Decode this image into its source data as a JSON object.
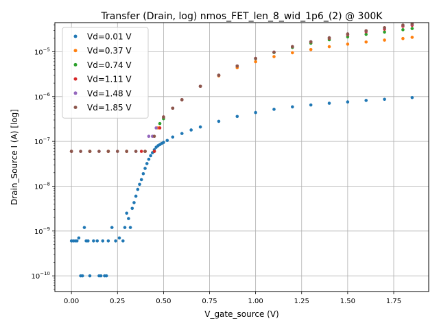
{
  "chart_data": {
    "type": "scatter",
    "title": "Transfer (Drain, log) nmos_FET_len_8_wid_1p6_(2) @ 300K",
    "xlabel": "V_gate_source (V)",
    "ylabel": "Drain_Source I (A) [log]",
    "xlim": [
      -0.09,
      1.94
    ],
    "ylim_log10": [
      -10.35,
      -4.35
    ],
    "y_scale": "log",
    "x_ticks": [
      "0.00",
      "0.25",
      "0.50",
      "0.75",
      "1.00",
      "1.25",
      "1.50",
      "1.75"
    ],
    "x_tick_values": [
      0,
      0.25,
      0.5,
      0.75,
      1.0,
      1.25,
      1.5,
      1.75
    ],
    "y_ticks": [
      "10^-10",
      "10^-9",
      "10^-8",
      "10^-7",
      "10^-6",
      "10^-5"
    ],
    "y_tick_exponents": [
      -10,
      -9,
      -8,
      -7,
      -6,
      -5
    ],
    "grid": true,
    "legend_position": "top-left",
    "series": [
      {
        "name": "Vd=0.01 V",
        "color": "#1f77b4",
        "x": [
          0.0,
          0.01,
          0.02,
          0.03,
          0.04,
          0.05,
          0.06,
          0.07,
          0.08,
          0.09,
          0.1,
          0.12,
          0.14,
          0.15,
          0.16,
          0.17,
          0.18,
          0.19,
          0.2,
          0.22,
          0.24,
          0.26,
          0.28,
          0.29,
          0.3,
          0.31,
          0.32,
          0.33,
          0.34,
          0.35,
          0.36,
          0.37,
          0.38,
          0.39,
          0.4,
          0.41,
          0.42,
          0.43,
          0.44,
          0.45,
          0.46,
          0.47,
          0.48,
          0.49,
          0.5,
          0.52,
          0.55,
          0.6,
          0.65,
          0.7,
          0.8,
          0.9,
          1.0,
          1.1,
          1.2,
          1.3,
          1.4,
          1.5,
          1.6,
          1.7,
          1.85
        ],
        "y": [
          6e-10,
          6e-10,
          6e-10,
          6e-10,
          7e-10,
          1e-10,
          1e-10,
          1.2e-09,
          6e-10,
          6e-10,
          1e-10,
          6e-10,
          6e-10,
          1e-10,
          1e-10,
          6e-10,
          1e-10,
          1e-10,
          6e-10,
          1.2e-09,
          6e-10,
          7e-10,
          6e-10,
          1.2e-09,
          2.5e-09,
          1.9e-09,
          1.2e-09,
          3.2e-09,
          4.3e-09,
          6e-09,
          8.5e-09,
          1.1e-08,
          1.4e-08,
          1.9e-08,
          2.5e-08,
          3.2e-08,
          4e-08,
          4.8e-08,
          5.6e-08,
          6.5e-08,
          7.4e-08,
          8e-08,
          8.5e-08,
          9e-08,
          9.5e-08,
          1.05e-07,
          1.25e-07,
          1.5e-07,
          1.8e-07,
          2.1e-07,
          2.8e-07,
          3.6e-07,
          4.4e-07,
          5.2e-07,
          5.9e-07,
          6.5e-07,
          7.1e-07,
          7.6e-07,
          8.2e-07,
          8.7e-07,
          9.5e-07
        ]
      },
      {
        "name": "Vd=0.37 V",
        "color": "#ff7f0e",
        "x": [
          0.0,
          0.1,
          0.2,
          0.3,
          0.4,
          0.45,
          0.47,
          0.5,
          0.55,
          0.6,
          0.7,
          0.8,
          0.9,
          1.0,
          1.1,
          1.2,
          1.3,
          1.4,
          1.5,
          1.6,
          1.7,
          1.8,
          1.85
        ],
        "y": [
          6e-08,
          6e-08,
          6e-08,
          6e-08,
          6e-08,
          6e-08,
          2e-07,
          3.5e-07,
          5.5e-07,
          8.5e-07,
          1.7e-06,
          2.9e-06,
          4.4e-06,
          6e-06,
          7.8e-06,
          9.5e-06,
          1.12e-05,
          1.3e-05,
          1.48e-05,
          1.65e-05,
          1.82e-05,
          1.97e-05,
          2.1e-05
        ]
      },
      {
        "name": "Vd=0.74 V",
        "color": "#2ca02c",
        "x": [
          0.0,
          0.1,
          0.2,
          0.3,
          0.4,
          0.45,
          0.48,
          0.5,
          0.55,
          0.6,
          0.7,
          0.8,
          0.9,
          1.0,
          1.1,
          1.2,
          1.3,
          1.4,
          1.5,
          1.6,
          1.7,
          1.8,
          1.85
        ],
        "y": [
          6e-08,
          6e-08,
          6e-08,
          6e-08,
          6e-08,
          6e-08,
          2.5e-07,
          3.2e-07,
          5.5e-07,
          8.5e-07,
          1.7e-06,
          3e-06,
          4.8e-06,
          7e-06,
          9.6e-06,
          1.25e-05,
          1.55e-05,
          1.85e-05,
          2.15e-05,
          2.45e-05,
          2.75e-05,
          3.1e-05,
          3.3e-05
        ]
      },
      {
        "name": "Vd=1.11 V",
        "color": "#d62728",
        "x": [
          0.0,
          0.1,
          0.2,
          0.3,
          0.38,
          0.4,
          0.45,
          0.48,
          0.5,
          0.55,
          0.6,
          0.7,
          0.8,
          0.9,
          1.0,
          1.1,
          1.2,
          1.3,
          1.4,
          1.5,
          1.6,
          1.7,
          1.8,
          1.85
        ],
        "y": [
          6e-08,
          6e-08,
          6e-08,
          6e-08,
          6e-08,
          6e-08,
          6e-08,
          2e-07,
          3.5e-07,
          5.5e-07,
          8.5e-07,
          1.7e-06,
          3e-06,
          4.8e-06,
          7.1e-06,
          9.8e-06,
          1.3e-05,
          1.65e-05,
          2e-05,
          2.4e-05,
          2.8e-05,
          3.2e-05,
          3.7e-05,
          3.9e-05
        ]
      },
      {
        "name": "Vd=1.48 V",
        "color": "#9467bd",
        "x": [
          0.0,
          0.05,
          0.15,
          0.25,
          0.35,
          0.42,
          0.44,
          0.46,
          0.5,
          0.55,
          0.6,
          0.7,
          0.8,
          0.9,
          1.0,
          1.1,
          1.2,
          1.3,
          1.4,
          1.5,
          1.6,
          1.7,
          1.8,
          1.85
        ],
        "y": [
          6e-08,
          6e-08,
          6e-08,
          6e-08,
          6e-08,
          1.3e-07,
          1.3e-07,
          2e-07,
          3.5e-07,
          5.5e-07,
          8.5e-07,
          1.7e-06,
          3e-06,
          4.8e-06,
          7.1e-06,
          9.8e-06,
          1.3e-05,
          1.67e-05,
          2.05e-05,
          2.48e-05,
          2.9e-05,
          3.4e-05,
          3.9e-05,
          4.1e-05
        ]
      },
      {
        "name": "Vd=1.85 V",
        "color": "#8c564b",
        "x": [
          0.0,
          0.05,
          0.1,
          0.15,
          0.2,
          0.25,
          0.3,
          0.35,
          0.4,
          0.45,
          0.5,
          0.55,
          0.6,
          0.7,
          0.8,
          0.9,
          1.0,
          1.1,
          1.2,
          1.3,
          1.4,
          1.5,
          1.6,
          1.7,
          1.8,
          1.85
        ],
        "y": [
          6e-08,
          6e-08,
          6e-08,
          6e-08,
          6e-08,
          6e-08,
          6e-08,
          6e-08,
          6e-08,
          1.3e-07,
          3.5e-07,
          5.5e-07,
          8.5e-07,
          1.7e-06,
          3e-06,
          4.8e-06,
          7.1e-06,
          9.8e-06,
          1.3e-05,
          1.67e-05,
          2.05e-05,
          2.5e-05,
          2.95e-05,
          3.45e-05,
          3.95e-05,
          4.2e-05
        ]
      }
    ]
  }
}
